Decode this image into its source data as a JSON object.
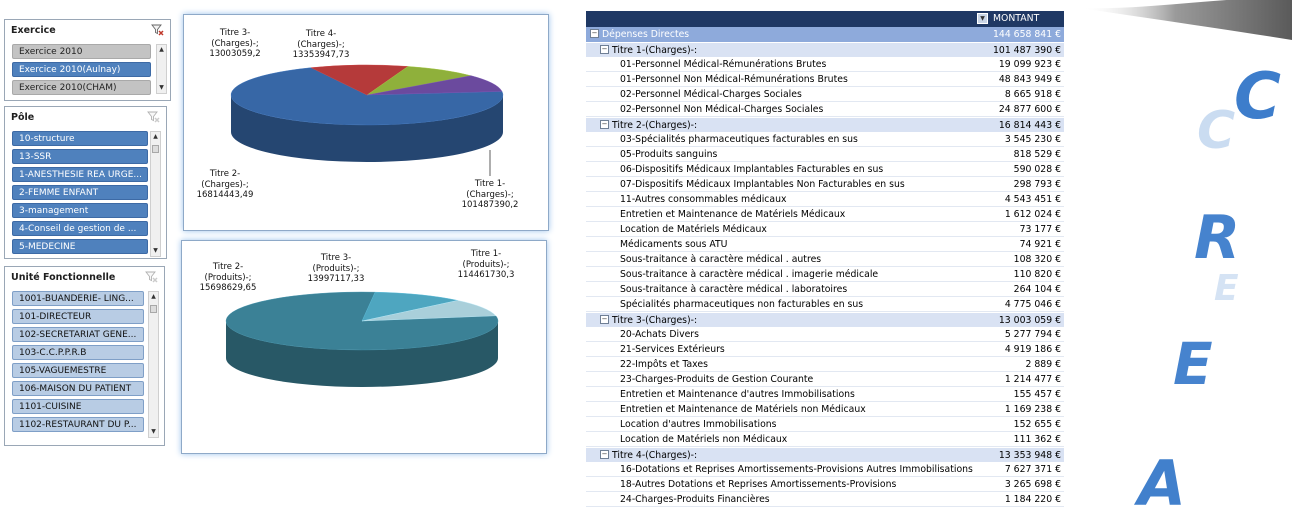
{
  "slicers": {
    "exercice": {
      "title": "Exercice",
      "items": [
        {
          "label": "Exercice 2010",
          "state": "nsel"
        },
        {
          "label": "Exercice 2010(Aulnay)",
          "state": "sel"
        },
        {
          "label": "Exercice 2010(CHAM)",
          "state": "nsel"
        }
      ]
    },
    "pole": {
      "title": "Pôle",
      "items": [
        {
          "label": "10-structure",
          "state": "sel"
        },
        {
          "label": "13-SSR",
          "state": "sel"
        },
        {
          "label": "1-ANESTHESIE REA URGE...",
          "state": "sel"
        },
        {
          "label": "2-FEMME ENFANT",
          "state": "sel"
        },
        {
          "label": "3-management",
          "state": "sel"
        },
        {
          "label": "4-Conseil de gestion de ...",
          "state": "sel"
        },
        {
          "label": "5-MEDECINE",
          "state": "sel"
        }
      ]
    },
    "unite": {
      "title": "Unité Fonctionnelle",
      "items": [
        {
          "label": "1001-BUANDERIE- LING...",
          "state": "lb"
        },
        {
          "label": "101-DIRECTEUR",
          "state": "lb"
        },
        {
          "label": "102-SECRETARIAT GENE...",
          "state": "lb"
        },
        {
          "label": "103-C.C.P.P.R.B",
          "state": "lb"
        },
        {
          "label": "105-VAGUEMESTRE",
          "state": "lb"
        },
        {
          "label": "106-MAISON DU PATIENT",
          "state": "lb"
        },
        {
          "label": "1101-CUISINE",
          "state": "lb"
        },
        {
          "label": "1102-RESTAURANT DU P...",
          "state": "lb"
        }
      ]
    }
  },
  "charts": {
    "charges": {
      "labels": {
        "t1": [
          "Titre 1-",
          "(Charges)-;",
          "101487390,2"
        ],
        "t2": [
          "Titre 2-",
          "(Charges)-;",
          "16814443,49"
        ],
        "t3": [
          "Titre 3-",
          "(Charges)-;",
          "13003059,2"
        ],
        "t4": [
          "Titre 4-",
          "(Charges)-;",
          "13353947,73"
        ]
      }
    },
    "produits": {
      "labels": {
        "t1": [
          "Titre 1-",
          "(Produits)-;",
          "114461730,3"
        ],
        "t2": [
          "Titre 2-",
          "(Produits)-;",
          "15698629,65"
        ],
        "t3": [
          "Titre 3-",
          "(Produits)-;",
          "13997117,33"
        ]
      }
    }
  },
  "chart_data": [
    {
      "type": "pie",
      "categories": [
        "Titre 1-(Charges)-",
        "Titre 2-(Charges)-",
        "Titre 3-(Charges)-",
        "Titre 4-(Charges)-"
      ],
      "values": [
        101487390.2,
        16814443.49,
        13003059.2,
        13353947.73
      ],
      "colors": [
        "#3767a6",
        "#b53a3a",
        "#8fb03b",
        "#6b4a9e"
      ]
    },
    {
      "type": "pie",
      "categories": [
        "Titre 1-(Produits)-",
        "Titre 2-(Produits)-",
        "Titre 3-(Produits)-"
      ],
      "values": [
        114461730.3,
        15698629.65,
        13997117.33
      ],
      "colors": [
        "#3b8196",
        "#4ea6c0",
        "#a9cfda"
      ]
    }
  ],
  "pivot": {
    "header_value": "MONTANT",
    "grand": {
      "label": "Dépenses Directes",
      "value": "144 658 841 €"
    },
    "groups": [
      {
        "label": "Titre 1-(Charges)-:",
        "value": "101 487 390 €",
        "rows": [
          {
            "label": "01-Personnel Médical-Rémunérations Brutes",
            "value": "19 099 923 €"
          },
          {
            "label": "01-Personnel Non Médical-Rémunérations Brutes",
            "value": "48 843 949 €"
          },
          {
            "label": "02-Personnel Médical-Charges Sociales",
            "value": "8 665 918 €"
          },
          {
            "label": "02-Personnel Non Médical-Charges Sociales",
            "value": "24 877 600 €"
          }
        ]
      },
      {
        "label": "Titre 2-(Charges)-:",
        "value": "16 814 443 €",
        "rows": [
          {
            "label": "03-Spécialités pharmaceutiques facturables en sus",
            "value": "3 545 230 €"
          },
          {
            "label": "05-Produits sanguins",
            "value": "818 529 €"
          },
          {
            "label": "06-Dispositifs Médicaux Implantables Facturables en sus",
            "value": "590 028 €"
          },
          {
            "label": "07-Dispositifs Médicaux Implantables Non Facturables en sus",
            "value": "298 793 €"
          },
          {
            "label": "11-Autres consommables médicaux",
            "value": "4 543 451 €"
          },
          {
            "label": "Entretien et Maintenance de Matériels Médicaux",
            "value": "1 612 024 €"
          },
          {
            "label": "Location de Matériels Médicaux",
            "value": "73 177 €"
          },
          {
            "label": "Médicaments sous ATU",
            "value": "74 921 €"
          },
          {
            "label": "Sous-traitance à caractère médical . autres",
            "value": "108 320 €"
          },
          {
            "label": "Sous-traitance à caractère médical . imagerie médicale",
            "value": "110 820 €"
          },
          {
            "label": "Sous-traitance à caractère médical . laboratoires",
            "value": "264 104 €"
          },
          {
            "label": "Spécialités pharmaceutiques non facturables en sus",
            "value": "4 775 046 €"
          }
        ]
      },
      {
        "label": "Titre 3-(Charges)-:",
        "value": "13 003 059 €",
        "rows": [
          {
            "label": "20-Achats Divers",
            "value": "5 277 794 €"
          },
          {
            "label": "21-Services Extérieurs",
            "value": "4 919 186 €"
          },
          {
            "label": "22-Impôts et Taxes",
            "value": "2 889 €"
          },
          {
            "label": "23-Charges-Produits de Gestion Courante",
            "value": "1 214 477 €"
          },
          {
            "label": "Entretien et Maintenance d'autres Immobilisations",
            "value": "155 457 €"
          },
          {
            "label": "Entretien et Maintenance de Matériels non Médicaux",
            "value": "1 169 238 €"
          },
          {
            "label": "Location d'autres Immobilisations",
            "value": "152 655 €"
          },
          {
            "label": "Location de Matériels non Médicaux",
            "value": "111 362 €"
          }
        ]
      },
      {
        "label": "Titre 4-(Charges)-:",
        "value": "13 353 948 €",
        "rows": [
          {
            "label": "16-Dotations et Reprises Amortissements-Provisions Autres Immobilisations",
            "value": "7 627 371 €"
          },
          {
            "label": "18-Autres Dotations et Reprises Amortissements-Provisions",
            "value": "3 265 698 €"
          },
          {
            "label": "24-Charges-Produits Financières",
            "value": "1 184 220 €"
          }
        ]
      }
    ]
  },
  "watermark": {
    "letters": [
      "C",
      "C",
      "R",
      "E",
      "E",
      "A"
    ]
  }
}
